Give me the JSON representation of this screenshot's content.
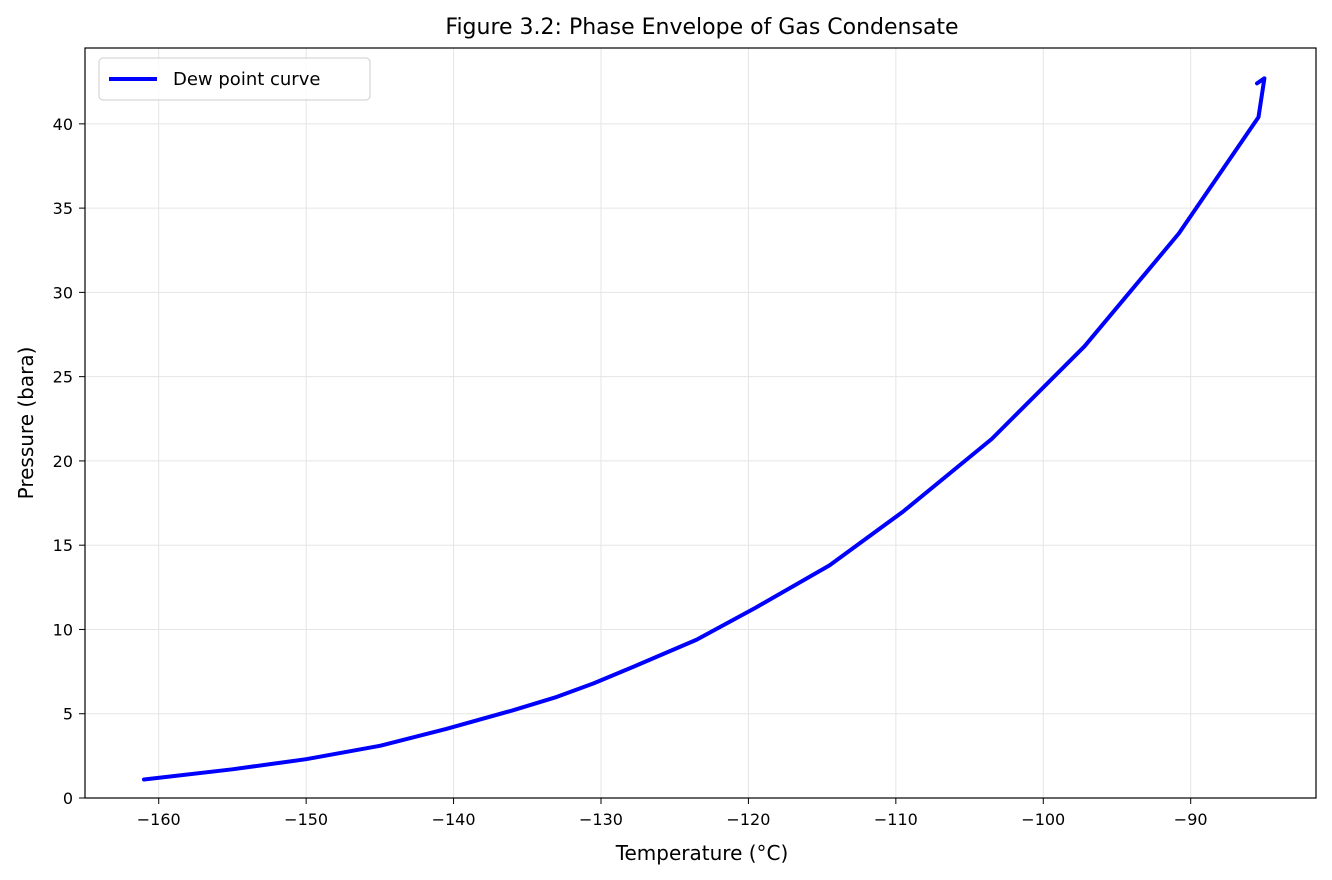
{
  "chart_data": {
    "type": "line",
    "title": "Figure 3.2: Phase Envelope of Gas Condensate",
    "xlabel": "Temperature (°C)",
    "ylabel": "Pressure (bara)",
    "xlim": [
      -165,
      -81.5
    ],
    "ylim": [
      0,
      44.5
    ],
    "xticks": [
      -160,
      -150,
      -140,
      -130,
      -120,
      -110,
      -100,
      -90
    ],
    "yticks": [
      0,
      5,
      10,
      15,
      20,
      25,
      30,
      35,
      40
    ],
    "grid": true,
    "legend_position": "top-left",
    "series": [
      {
        "name": "Dew point curve",
        "color": "#0000ff",
        "x": [
          -161.0,
          -155.0,
          -150.0,
          -145.0,
          -140.5,
          -136.0,
          -133.0,
          -130.5,
          -127.5,
          -123.5,
          -119.5,
          -114.5,
          -109.5,
          -103.5,
          -97.2,
          -90.8,
          -85.4,
          -85.0,
          -85.5
        ],
        "y": [
          1.1,
          1.7,
          2.3,
          3.1,
          4.1,
          5.2,
          6.0,
          6.8,
          7.9,
          9.4,
          11.3,
          13.8,
          17.0,
          21.3,
          26.8,
          33.5,
          40.4,
          42.7,
          42.4
        ]
      }
    ]
  }
}
